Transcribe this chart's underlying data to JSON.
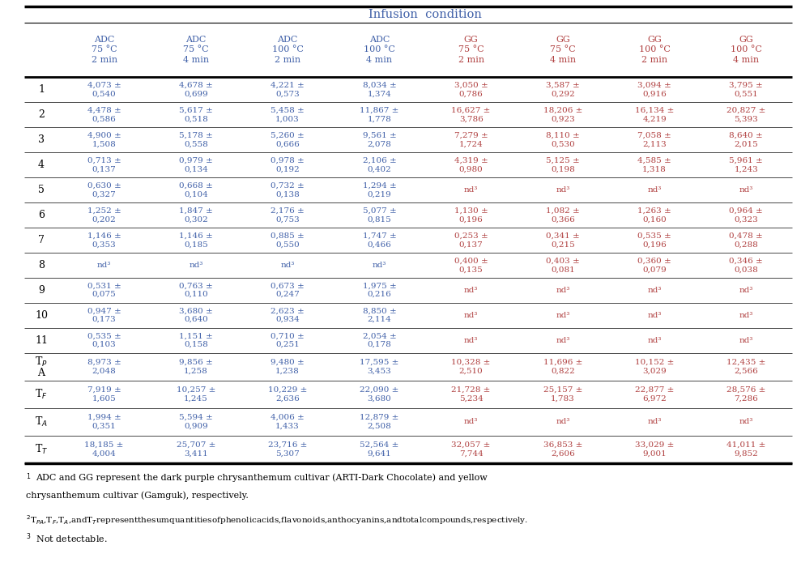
{
  "title": "Infusion  condition",
  "col_headers": [
    [
      "ADC",
      "75 °C",
      "2 min"
    ],
    [
      "ADC",
      "75 °C",
      "4 min"
    ],
    [
      "ADC",
      "100 °C",
      "2 min"
    ],
    [
      "ADC",
      "100 °C",
      "4 min"
    ],
    [
      "GG",
      "75 °C",
      "2 min"
    ],
    [
      "GG",
      "75 °C",
      "4 min"
    ],
    [
      "GG",
      "100 °C",
      "2 min"
    ],
    [
      "GG",
      "100 °C",
      "4 min"
    ]
  ],
  "cell_data": [
    [
      "4,073 ±\n0,540",
      "4,678 ±\n0,699",
      "4,221 ±\n0,573",
      "8,034 ±\n1,374",
      "3,050 ±\n0,786",
      "3,587 ±\n0,292",
      "3,094 ±\n0,916",
      "3,795 ±\n0,551"
    ],
    [
      "4,478 ±\n0,586",
      "5,617 ±\n0,518",
      "5,458 ±\n1,003",
      "11,867 ±\n1,778",
      "16,627 ±\n3,786",
      "18,206 ±\n0,923",
      "16,134 ±\n4,219",
      "20,827 ±\n5,393"
    ],
    [
      "4,900 ±\n1,508",
      "5,178 ±\n0,558",
      "5,260 ±\n0,666",
      "9,561 ±\n2,078",
      "7,279 ±\n1,724",
      "8,110 ±\n0,530",
      "7,058 ±\n2,113",
      "8,640 ±\n2,015"
    ],
    [
      "0,713 ±\n0,137",
      "0,979 ±\n0,134",
      "0,978 ±\n0,192",
      "2,106 ±\n0,402",
      "4,319 ±\n0,980",
      "5,125 ±\n0,198",
      "4,585 ±\n1,318",
      "5,961 ±\n1,243"
    ],
    [
      "0,630 ±\n0,327",
      "0,668 ±\n0,104",
      "0,732 ±\n0,138",
      "1,294 ±\n0,219",
      "nd³",
      "nd³",
      "nd³",
      "nd³"
    ],
    [
      "1,252 ±\n0,202",
      "1,847 ±\n0,302",
      "2,176 ±\n0,753",
      "5,077 ±\n0,815",
      "1,130 ±\n0,196",
      "1,082 ±\n0,366",
      "1,263 ±\n0,160",
      "0,964 ±\n0,323"
    ],
    [
      "1,146 ±\n0,353",
      "1,146 ±\n0,185",
      "0,885 ±\n0,550",
      "1,747 ±\n0,466",
      "0,253 ±\n0,137",
      "0,341 ±\n0,215",
      "0,535 ±\n0,196",
      "0,478 ±\n0,288"
    ],
    [
      "nd³",
      "nd³",
      "nd³",
      "nd³",
      "0,400 ±\n0,135",
      "0,403 ±\n0,081",
      "0,360 ±\n0,079",
      "0,346 ±\n0,038"
    ],
    [
      "0,531 ±\n0,075",
      "0,763 ±\n0,110",
      "0,673 ±\n0,247",
      "1,975 ±\n0,216",
      "nd³",
      "nd³",
      "nd³",
      "nd³"
    ],
    [
      "0,947 ±\n0,173",
      "3,680 ±\n0,640",
      "2,623 ±\n0,934",
      "8,850 ±\n2,114",
      "nd³",
      "nd³",
      "nd³",
      "nd³"
    ],
    [
      "0,535 ±\n0,103",
      "1,151 ±\n0,158",
      "0,710 ±\n0,251",
      "2,054 ±\n0,178",
      "nd³",
      "nd³",
      "nd³",
      "nd³"
    ],
    [
      "8,973 ±\n2,048",
      "9,856 ±\n1,258",
      "9,480 ±\n1,238",
      "17,595 ±\n3,453",
      "10,328 ±\n2,510",
      "11,696 ±\n0,822",
      "10,152 ±\n3,029",
      "12,435 ±\n2,566"
    ],
    [
      "7,919 ±\n1,605",
      "10,257 ±\n1,245",
      "10,229 ±\n2,636",
      "22,090 ±\n3,680",
      "21,728 ±\n5,234",
      "25,157 ±\n1,783",
      "22,877 ±\n6,972",
      "28,576 ±\n7,286"
    ],
    [
      "1,994 ±\n0,351",
      "5,594 ±\n0,909",
      "4,006 ±\n1,433",
      "12,879 ±\n2,508",
      "nd³",
      "nd³",
      "nd³",
      "nd³"
    ],
    [
      "18,185 ±\n4,004",
      "25,707 ±\n3,411",
      "23,716 ±\n5,307",
      "52,564 ±\n9,641",
      "32,057 ±\n7,744",
      "36,853 ±\n2,606",
      "33,029 ±\n9,001",
      "41,011 ±\n9,852"
    ]
  ],
  "adc_color": "#4060a8",
  "gg_color": "#b04040",
  "title_color": "#4060a8",
  "text_color": "#000000"
}
